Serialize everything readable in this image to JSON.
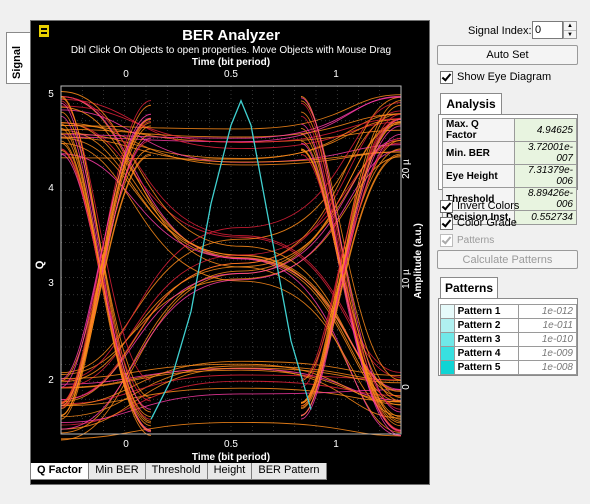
{
  "side_tab": {
    "label": "Signal"
  },
  "plot": {
    "title": "BER Analyzer",
    "hint": "Dbl Click On Objects to open properties.  Move Objects with Mouse Drag",
    "top_axis_label": "Time (bit period)",
    "bottom_axis_label": "Time (bit period)",
    "left_axis_label": "Q",
    "right_axis_label": "Amplitude (a.u.)",
    "y_ticks": [
      "5",
      "4",
      "3",
      "2"
    ],
    "x_ticks": [
      "0",
      "0.5",
      "1"
    ],
    "right_ticks": [
      "20 µ",
      "10 µ",
      "0"
    ],
    "colors": {
      "background": "#000000",
      "eye_orange": "#ff8c1a",
      "eye_red": "#e0203a",
      "eye_pink": "#ff3ca8",
      "q_curve": "#40d0d0"
    },
    "chart_data": {
      "type": "line",
      "series": [
        {
          "x": [
            0.1,
            0.2,
            0.3,
            0.4,
            0.5,
            0.55,
            0.6,
            0.7,
            0.8,
            0.9
          ],
          "values": [
            1.7,
            2.1,
            2.8,
            3.9,
            4.7,
            4.95,
            4.7,
            3.6,
            2.5,
            1.8
          ]
        }
      ],
      "xlabel": "Time (bit period)",
      "ylabel": "Q",
      "xlim": [
        -0.35,
        1.35
      ],
      "ylim": [
        1.55,
        5.1
      ],
      "grid": true
    }
  },
  "tabs": [
    {
      "label": "Q Factor",
      "active": true
    },
    {
      "label": "Min BER",
      "active": false
    },
    {
      "label": "Threshold",
      "active": false
    },
    {
      "label": "Height",
      "active": false
    },
    {
      "label": "BER Pattern",
      "active": false
    }
  ],
  "panel": {
    "signal_index_label": "Signal Index:",
    "signal_index_value": "0",
    "auto_set_label": "Auto Set",
    "show_eye_label": "Show Eye Diagram",
    "analysis_tab_label": "Analysis",
    "analysis_rows": [
      {
        "key": "Max. Q Factor",
        "value": "4.94625"
      },
      {
        "key": "Min. BER",
        "value": "3.72001e-007"
      },
      {
        "key": "Eye Height",
        "value": "7.31379e-006"
      },
      {
        "key": "Threshold",
        "value": "8.89426e-006"
      },
      {
        "key": "Decision Inst.",
        "value": "0.552734"
      }
    ],
    "invert_colors_label": "Invert Colors",
    "color_grade_label": "Color Grade",
    "patterns_check_label": "Patterns",
    "calculate_label": "Calculate Patterns",
    "patterns_tab_label": "Patterns",
    "pattern_rows": [
      {
        "name": "Pattern 1",
        "value": "1e-012",
        "color": "#e6fafa"
      },
      {
        "name": "Pattern 2",
        "value": "1e-011",
        "color": "#b0f0f0"
      },
      {
        "name": "Pattern 3",
        "value": "1e-010",
        "color": "#70e8e8"
      },
      {
        "name": "Pattern 4",
        "value": "1e-009",
        "color": "#38e0e0"
      },
      {
        "name": "Pattern 5",
        "value": "1e-008",
        "color": "#10d4d4"
      }
    ]
  }
}
